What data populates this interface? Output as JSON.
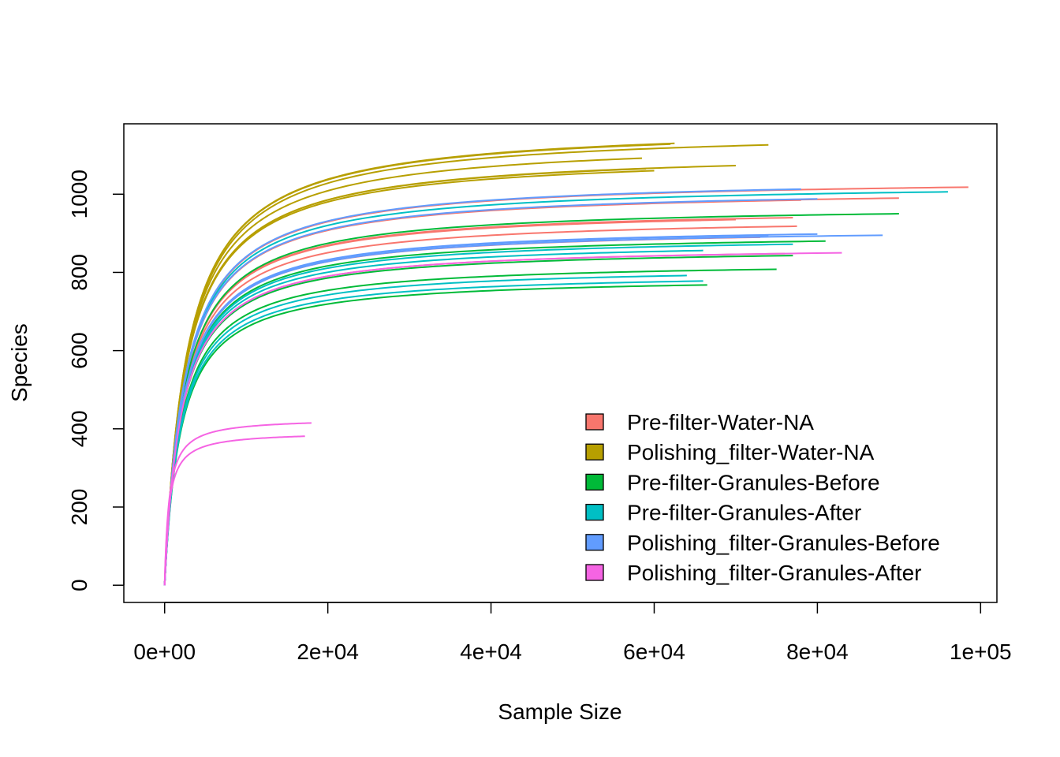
{
  "chart_data": {
    "type": "line",
    "title": "",
    "xlabel": "Sample Size",
    "ylabel": "Species",
    "xlim": [
      -5000,
      102000
    ],
    "ylim": [
      -44,
      1180
    ],
    "x_ticks": [
      {
        "value": 0,
        "label": "0e+00"
      },
      {
        "value": 20000,
        "label": "2e+04"
      },
      {
        "value": 40000,
        "label": "4e+04"
      },
      {
        "value": 60000,
        "label": "6e+04"
      },
      {
        "value": 80000,
        "label": "8e+04"
      },
      {
        "value": 100000,
        "label": "1e+05"
      }
    ],
    "y_ticks": [
      {
        "value": 0,
        "label": "0"
      },
      {
        "value": 200,
        "label": "200"
      },
      {
        "value": 400,
        "label": "400"
      },
      {
        "value": 600,
        "label": "600"
      },
      {
        "value": 800,
        "label": "800"
      },
      {
        "value": 1000,
        "label": "1000"
      }
    ],
    "grid": false,
    "legend_position": "bottom-right",
    "legend": [
      {
        "label": "Pre-filter-Water-NA",
        "color": "#F8766D"
      },
      {
        "label": "Polishing_filter-Water-NA",
        "color": "#B79F00"
      },
      {
        "label": "Pre-filter-Granules-Before",
        "color": "#00BA38"
      },
      {
        "label": "Pre-filter-Granules-After",
        "color": "#00BFC4"
      },
      {
        "label": "Polishing_filter-Granules-Before",
        "color": "#619CFF"
      },
      {
        "label": "Polishing_filter-Granules-After",
        "color": "#F564E3"
      }
    ],
    "series_colors": [
      "#F8766D",
      "#B79F00",
      "#00BA38",
      "#00BFC4",
      "#619CFF",
      "#F564E3"
    ],
    "curves": [
      {
        "group": 0,
        "max_sample": 98500,
        "max_species": 1018
      },
      {
        "group": 0,
        "max_sample": 90000,
        "max_species": 990
      },
      {
        "group": 0,
        "max_sample": 78000,
        "max_species": 985
      },
      {
        "group": 0,
        "max_sample": 77000,
        "max_species": 940
      },
      {
        "group": 0,
        "max_sample": 70000,
        "max_species": 935
      },
      {
        "group": 0,
        "max_sample": 77500,
        "max_species": 918
      },
      {
        "group": 0,
        "max_sample": 73000,
        "max_species": 890
      },
      {
        "group": 0,
        "max_sample": 76000,
        "max_species": 848
      },
      {
        "group": 1,
        "max_sample": 62500,
        "max_species": 1130
      },
      {
        "group": 1,
        "max_sample": 74000,
        "max_species": 1126
      },
      {
        "group": 1,
        "max_sample": 62000,
        "max_species": 1128
      },
      {
        "group": 1,
        "max_sample": 58500,
        "max_species": 1092
      },
      {
        "group": 1,
        "max_sample": 70000,
        "max_species": 1073
      },
      {
        "group": 1,
        "max_sample": 59000,
        "max_species": 1065
      },
      {
        "group": 1,
        "max_sample": 60000,
        "max_species": 1060
      },
      {
        "group": 2,
        "max_sample": 90000,
        "max_species": 950
      },
      {
        "group": 2,
        "max_sample": 81000,
        "max_species": 880
      },
      {
        "group": 2,
        "max_sample": 77000,
        "max_species": 843
      },
      {
        "group": 2,
        "max_sample": 75000,
        "max_species": 808
      },
      {
        "group": 2,
        "max_sample": 66500,
        "max_species": 768
      },
      {
        "group": 3,
        "max_sample": 96000,
        "max_species": 1006
      },
      {
        "group": 3,
        "max_sample": 77000,
        "max_species": 872
      },
      {
        "group": 3,
        "max_sample": 66000,
        "max_species": 856
      },
      {
        "group": 3,
        "max_sample": 64000,
        "max_species": 792
      },
      {
        "group": 3,
        "max_sample": 66000,
        "max_species": 778
      },
      {
        "group": 4,
        "max_sample": 78000,
        "max_species": 1013
      },
      {
        "group": 4,
        "max_sample": 80000,
        "max_species": 988
      },
      {
        "group": 4,
        "max_sample": 88000,
        "max_species": 895
      },
      {
        "group": 4,
        "max_sample": 80000,
        "max_species": 898
      },
      {
        "group": 4,
        "max_sample": 74000,
        "max_species": 895
      },
      {
        "group": 5,
        "max_sample": 83000,
        "max_species": 850
      },
      {
        "group": 5,
        "max_sample": 18000,
        "max_species": 415
      },
      {
        "group": 5,
        "max_sample": 17200,
        "max_species": 381
      }
    ]
  }
}
